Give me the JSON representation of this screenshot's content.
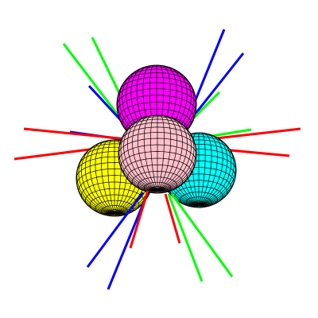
{
  "scene": {
    "background": "#ffffff",
    "outline_color": "#000000",
    "spheres": [
      {
        "id": "yellow",
        "color": "#ffff00"
      },
      {
        "id": "cyan",
        "color": "#00ffff"
      },
      {
        "id": "magenta",
        "color": "#ff00ff"
      },
      {
        "id": "pink",
        "color": "#ffc0cb"
      }
    ],
    "axis_colors": {
      "red": "#ff0000",
      "green": "#00ff00",
      "blue": "#0000ff"
    }
  }
}
